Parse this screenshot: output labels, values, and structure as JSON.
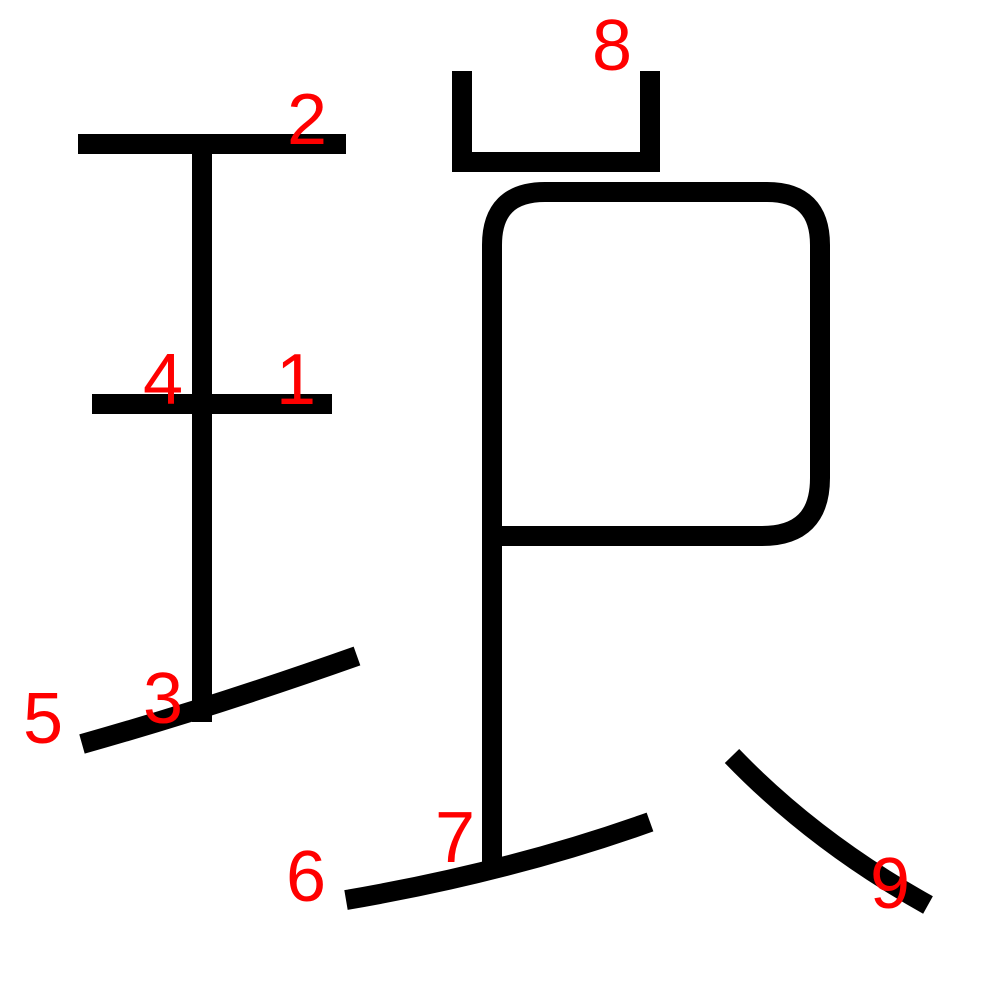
{
  "stroke_color": "#000000",
  "label_color": "#ff0000",
  "stroke_order_labels": {
    "n1": "1",
    "n2": "2",
    "n3": "3",
    "n4": "4",
    "n5": "5",
    "n6": "6",
    "n7": "7",
    "n8": "8",
    "n9": "9"
  }
}
